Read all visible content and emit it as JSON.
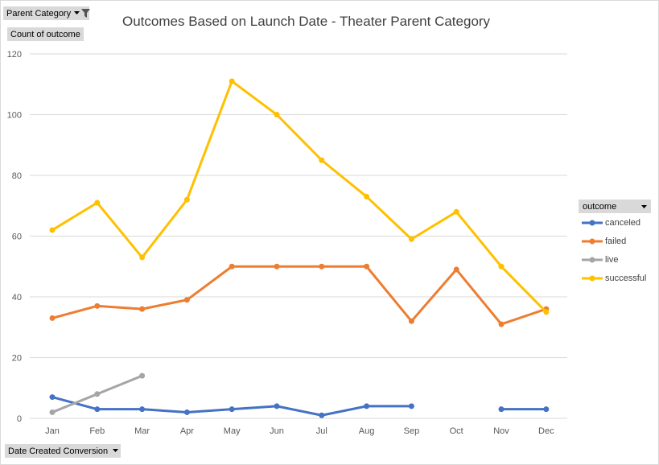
{
  "filters": {
    "parent_category_label": "Parent Category",
    "values_label": "Count of outcome",
    "axis_field_label": "Date Created Conversion",
    "legend_field_label": "outcome"
  },
  "icons": {
    "filter": "filter-icon",
    "dropdown": "dropdown-arrow-icon"
  },
  "colors": {
    "canceled": "#4472c4",
    "failed": "#ed7d31",
    "live": "#a5a5a5",
    "successful": "#ffc000",
    "gridline": "#d9d9d9",
    "text": "#595959"
  },
  "chart_data": {
    "type": "line",
    "title": "Outcomes Based on Launch Date - Theater Parent Category",
    "xlabel": "",
    "ylabel": "",
    "categories": [
      "Jan",
      "Feb",
      "Mar",
      "Apr",
      "May",
      "Jun",
      "Jul",
      "Aug",
      "Sep",
      "Oct",
      "Nov",
      "Dec"
    ],
    "ylim": [
      0,
      120
    ],
    "yticks": [
      0,
      20,
      40,
      60,
      80,
      100,
      120
    ],
    "grid": true,
    "legend_position": "right",
    "series": [
      {
        "name": "canceled",
        "values": [
          7,
          3,
          3,
          2,
          3,
          4,
          1,
          4,
          4,
          null,
          3,
          3
        ]
      },
      {
        "name": "failed",
        "values": [
          33,
          37,
          36,
          39,
          50,
          50,
          50,
          50,
          32,
          49,
          31,
          36
        ]
      },
      {
        "name": "live",
        "values": [
          2,
          8,
          14,
          null,
          null,
          null,
          null,
          null,
          null,
          null,
          null,
          null
        ]
      },
      {
        "name": "successful",
        "values": [
          62,
          71,
          53,
          72,
          111,
          100,
          85,
          73,
          59,
          68,
          50,
          35
        ]
      }
    ]
  }
}
